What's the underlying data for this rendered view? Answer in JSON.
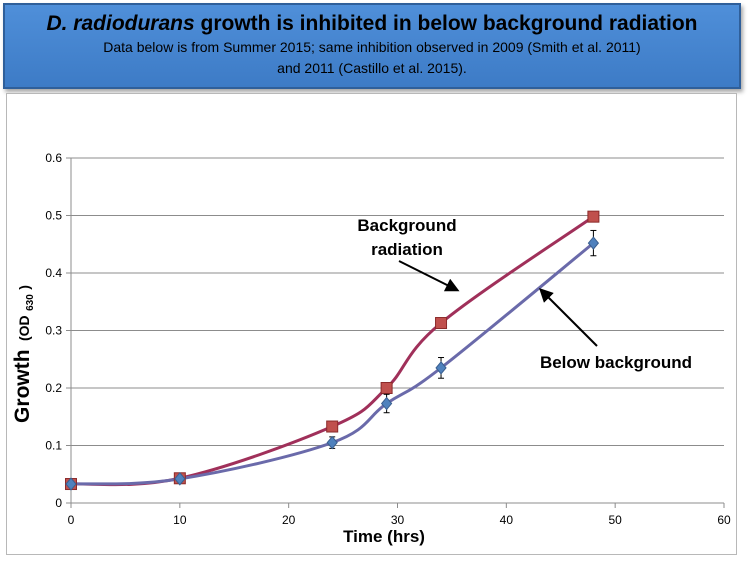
{
  "header": {
    "title_species": "D. radiodurans",
    "title_rest": " growth is inhibited in below background radiation",
    "subtitle_line1": "Data below is from Summer 2015; same inhibition observed in 2009 (Smith et al. 2011)",
    "subtitle_line2": "and 2011 (Castillo et al. 2015)."
  },
  "chart_data": {
    "type": "line",
    "xlabel": "Time (hrs)",
    "ylabel": "Growth",
    "ylabel_unit": "(OD",
    "ylabel_unit_sub": "630",
    "ylabel_unit_close": ")",
    "xlim": [
      0,
      60
    ],
    "ylim": [
      0,
      0.6
    ],
    "x_ticks": [
      "0",
      "10",
      "20",
      "30",
      "40",
      "50",
      "60"
    ],
    "y_ticks": [
      "0",
      "0.1",
      "0.2",
      "0.3",
      "0.4",
      "0.5",
      "0.6"
    ],
    "grid": "horizontal",
    "series": [
      {
        "name": "Background radiation",
        "color": "#a0305a",
        "marker": "square",
        "marker_color": "#c0504d",
        "x": [
          0,
          10,
          24,
          29,
          34,
          48
        ],
        "y": [
          0.033,
          0.043,
          0.133,
          0.2,
          0.313,
          0.498
        ]
      },
      {
        "name": "Below background",
        "color": "#6a6aaa",
        "marker": "diamond",
        "marker_color": "#4f81bd",
        "x": [
          0,
          10,
          24,
          29,
          34,
          48
        ],
        "y": [
          0.033,
          0.042,
          0.105,
          0.173,
          0.235,
          0.452
        ],
        "error": [
          0,
          0,
          0.01,
          0.016,
          0.018,
          0.022
        ]
      }
    ],
    "annotations": [
      {
        "lines": [
          "Background",
          "radiation"
        ]
      },
      {
        "lines": [
          "Below background"
        ]
      }
    ]
  }
}
